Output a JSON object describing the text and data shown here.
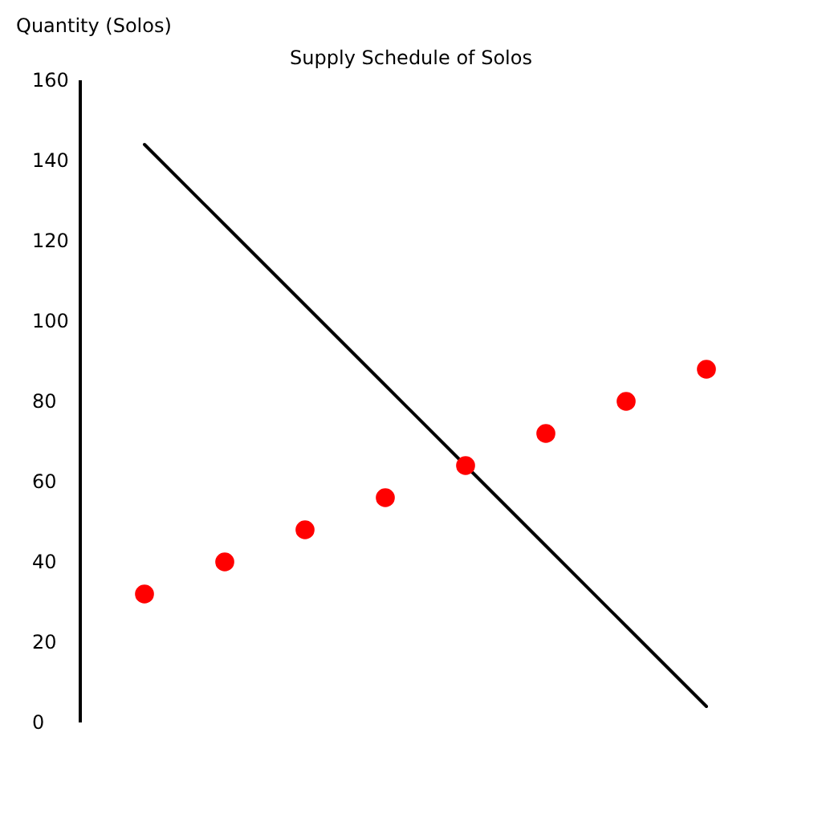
{
  "chart_data": {
    "type": "scatter",
    "title": "Supply Schedule of Solos",
    "ylabel": "Quantity (Solos)",
    "categories": [
      null,
      null,
      null,
      null,
      null,
      null,
      null,
      null
    ],
    "series": [
      {
        "type": "line",
        "color": "#000000",
        "values": [
          144,
          124,
          104,
          84,
          64,
          44,
          24,
          4
        ],
        "line_style": "solid"
      },
      {
        "color": "#ff0000",
        "values": [
          32,
          40,
          48,
          56,
          64,
          72,
          80,
          88
        ],
        "marker": "circle"
      }
    ],
    "ylim": [
      0,
      160
    ],
    "yticks": [
      0,
      20,
      40,
      60,
      80,
      100,
      120,
      140,
      160
    ],
    "tick_labels": "y"
  }
}
